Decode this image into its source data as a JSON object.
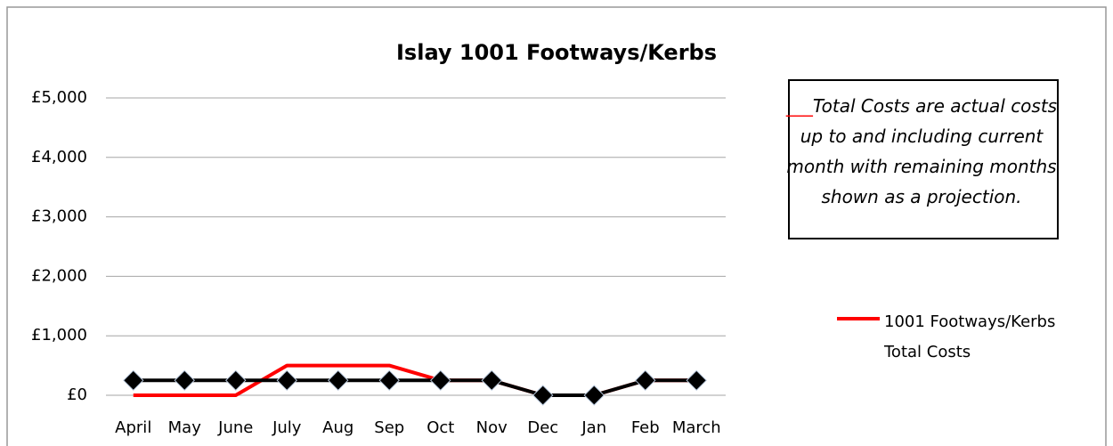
{
  "chart_data": {
    "type": "line",
    "title": "Islay 1001 Footways/Kerbs",
    "categories": [
      "April",
      "May",
      "June",
      "July",
      "Aug",
      "Sep",
      "Oct",
      "Nov",
      "Dec",
      "Jan",
      "Feb",
      "March"
    ],
    "series": [
      {
        "name": "1001 Footways/Kerbs Total Costs",
        "color": "#ff0000",
        "values": [
          0,
          0,
          0,
          500,
          500,
          500,
          250,
          250,
          0,
          0,
          250,
          250
        ]
      },
      {
        "color": "#000000",
        "values": [
          250,
          250,
          250,
          250,
          250,
          250,
          250,
          250,
          0,
          0,
          250,
          250
        ],
        "markers": true
      }
    ],
    "ylim": [
      0,
      5000
    ],
    "yticks": [
      {
        "value": 0,
        "label": "£0"
      },
      {
        "value": 1000,
        "label": "£1,000"
      },
      {
        "value": 2000,
        "label": "£2,000"
      },
      {
        "value": 3000,
        "label": "£3,000"
      },
      {
        "value": 4000,
        "label": "£4,000"
      },
      {
        "value": 5000,
        "label": "£5,000"
      }
    ],
    "grid": true,
    "legend": "right",
    "annotation": "Total Costs are actual costs up to and including current month with remaining months shown as a projection."
  }
}
